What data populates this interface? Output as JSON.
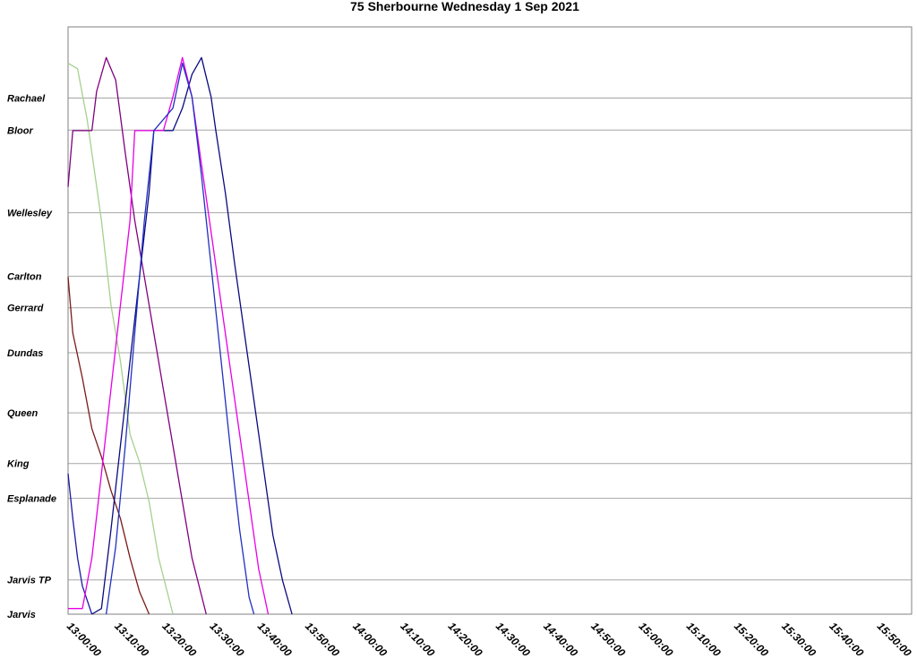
{
  "chart_data": {
    "type": "line",
    "title": "75 Sherbourne Wednesday 1 Sep 2021",
    "xlabel": "",
    "ylabel": "",
    "xlim": [
      "13:00:00",
      "15:57:00"
    ],
    "x_ticks": [
      "13:00:00",
      "13:10:00",
      "13:20:00",
      "13:30:00",
      "13:40:00",
      "13:50:00",
      "14:00:00",
      "14:10:00",
      "14:20:00",
      "14:30:00",
      "14:40:00",
      "14:50:00",
      "15:00:00",
      "15:10:00",
      "15:20:00",
      "15:30:00",
      "15:40:00",
      "15:50:00"
    ],
    "stops": [
      {
        "name": "Rachael",
        "pos": 0.918
      },
      {
        "name": "Bloor",
        "pos": 0.861
      },
      {
        "name": "Wellesley",
        "pos": 0.714
      },
      {
        "name": "Carlton",
        "pos": 0.601
      },
      {
        "name": "Gerrard",
        "pos": 0.545
      },
      {
        "name": "Dundas",
        "pos": 0.465
      },
      {
        "name": "Queen",
        "pos": 0.358
      },
      {
        "name": "King",
        "pos": 0.268
      },
      {
        "name": "Esplanade",
        "pos": 0.206
      },
      {
        "name": "Jarvis TP",
        "pos": 0.061
      },
      {
        "name": "Jarvis",
        "pos": 0.0
      }
    ],
    "grid": true,
    "legend": "none",
    "series": [
      {
        "color": "#a6d08e",
        "points": [
          [
            "13:00",
            0.98
          ],
          [
            "13:02",
            0.97
          ],
          [
            "13:04",
            0.88
          ],
          [
            "13:07",
            0.7
          ],
          [
            "13:09",
            0.55
          ],
          [
            "13:11",
            0.45
          ],
          [
            "13:13",
            0.32
          ],
          [
            "13:15",
            0.27
          ],
          [
            "13:17",
            0.2
          ],
          [
            "13:19",
            0.1
          ],
          [
            "13:22",
            0.0
          ]
        ]
      },
      {
        "color": "#7a1a1a",
        "points": [
          [
            "13:00",
            0.6
          ],
          [
            "13:01",
            0.5
          ],
          [
            "13:03",
            0.42
          ],
          [
            "13:05",
            0.33
          ],
          [
            "13:07",
            0.28
          ],
          [
            "13:09",
            0.22
          ],
          [
            "13:11",
            0.17
          ],
          [
            "13:13",
            0.1
          ],
          [
            "13:15",
            0.04
          ],
          [
            "13:17",
            0.0
          ]
        ]
      },
      {
        "color": "#800080",
        "points": [
          [
            "13:00",
            0.76
          ],
          [
            "13:01",
            0.86
          ],
          [
            "13:05",
            0.86
          ],
          [
            "13:06",
            0.93
          ],
          [
            "13:08",
            0.99
          ],
          [
            "13:10",
            0.95
          ],
          [
            "13:12",
            0.82
          ],
          [
            "13:14",
            0.7
          ],
          [
            "13:16",
            0.6
          ],
          [
            "13:18",
            0.5
          ],
          [
            "13:20",
            0.4
          ],
          [
            "13:22",
            0.3
          ],
          [
            "13:24",
            0.2
          ],
          [
            "13:26",
            0.1
          ],
          [
            "13:29",
            0.0
          ]
        ]
      },
      {
        "color": "#1a1aa6",
        "points": [
          [
            "13:00",
            0.25
          ],
          [
            "13:01",
            0.17
          ],
          [
            "13:02",
            0.1
          ],
          [
            "13:03",
            0.05
          ],
          [
            "13:05",
            0.0
          ]
        ]
      },
      {
        "color": "#0a0a80",
        "points": [
          [
            "13:05",
            0.0
          ],
          [
            "13:07",
            0.01
          ],
          [
            "13:09",
            0.15
          ],
          [
            "13:11",
            0.3
          ],
          [
            "13:13",
            0.45
          ],
          [
            "13:15",
            0.6
          ],
          [
            "13:17",
            0.75
          ],
          [
            "13:18",
            0.86
          ],
          [
            "13:22",
            0.86
          ],
          [
            "13:24",
            0.9
          ],
          [
            "13:26",
            0.96
          ],
          [
            "13:28",
            0.99
          ],
          [
            "13:30",
            0.92
          ],
          [
            "13:31",
            0.86
          ],
          [
            "13:33",
            0.75
          ],
          [
            "13:35",
            0.62
          ],
          [
            "13:37",
            0.5
          ],
          [
            "13:39",
            0.38
          ],
          [
            "13:41",
            0.26
          ],
          [
            "13:43",
            0.14
          ],
          [
            "13:45",
            0.06
          ],
          [
            "13:47",
            0.0
          ]
        ]
      },
      {
        "color": "#e600e6",
        "points": [
          [
            "13:00",
            0.01
          ],
          [
            "13:03",
            0.01
          ],
          [
            "13:05",
            0.1
          ],
          [
            "13:07",
            0.25
          ],
          [
            "13:09",
            0.4
          ],
          [
            "13:11",
            0.55
          ],
          [
            "13:13",
            0.7
          ],
          [
            "13:14",
            0.86
          ],
          [
            "13:20",
            0.86
          ],
          [
            "13:22",
            0.92
          ],
          [
            "13:24",
            0.99
          ],
          [
            "13:26",
            0.92
          ],
          [
            "13:28",
            0.8
          ],
          [
            "13:30",
            0.68
          ],
          [
            "13:32",
            0.56
          ],
          [
            "13:34",
            0.44
          ],
          [
            "13:36",
            0.32
          ],
          [
            "13:38",
            0.2
          ],
          [
            "13:40",
            0.08
          ],
          [
            "13:42",
            0.0
          ]
        ]
      },
      {
        "color": "#2030c0",
        "points": [
          [
            "13:08",
            0.0
          ],
          [
            "13:10",
            0.12
          ],
          [
            "13:12",
            0.3
          ],
          [
            "13:14",
            0.5
          ],
          [
            "13:16",
            0.7
          ],
          [
            "13:18",
            0.86
          ],
          [
            "13:22",
            0.9
          ],
          [
            "13:24",
            0.98
          ],
          [
            "13:26",
            0.92
          ],
          [
            "13:28",
            0.78
          ],
          [
            "13:30",
            0.62
          ],
          [
            "13:32",
            0.46
          ],
          [
            "13:34",
            0.3
          ],
          [
            "13:36",
            0.15
          ],
          [
            "13:38",
            0.03
          ],
          [
            "13:39",
            0.0
          ]
        ]
      }
    ]
  }
}
